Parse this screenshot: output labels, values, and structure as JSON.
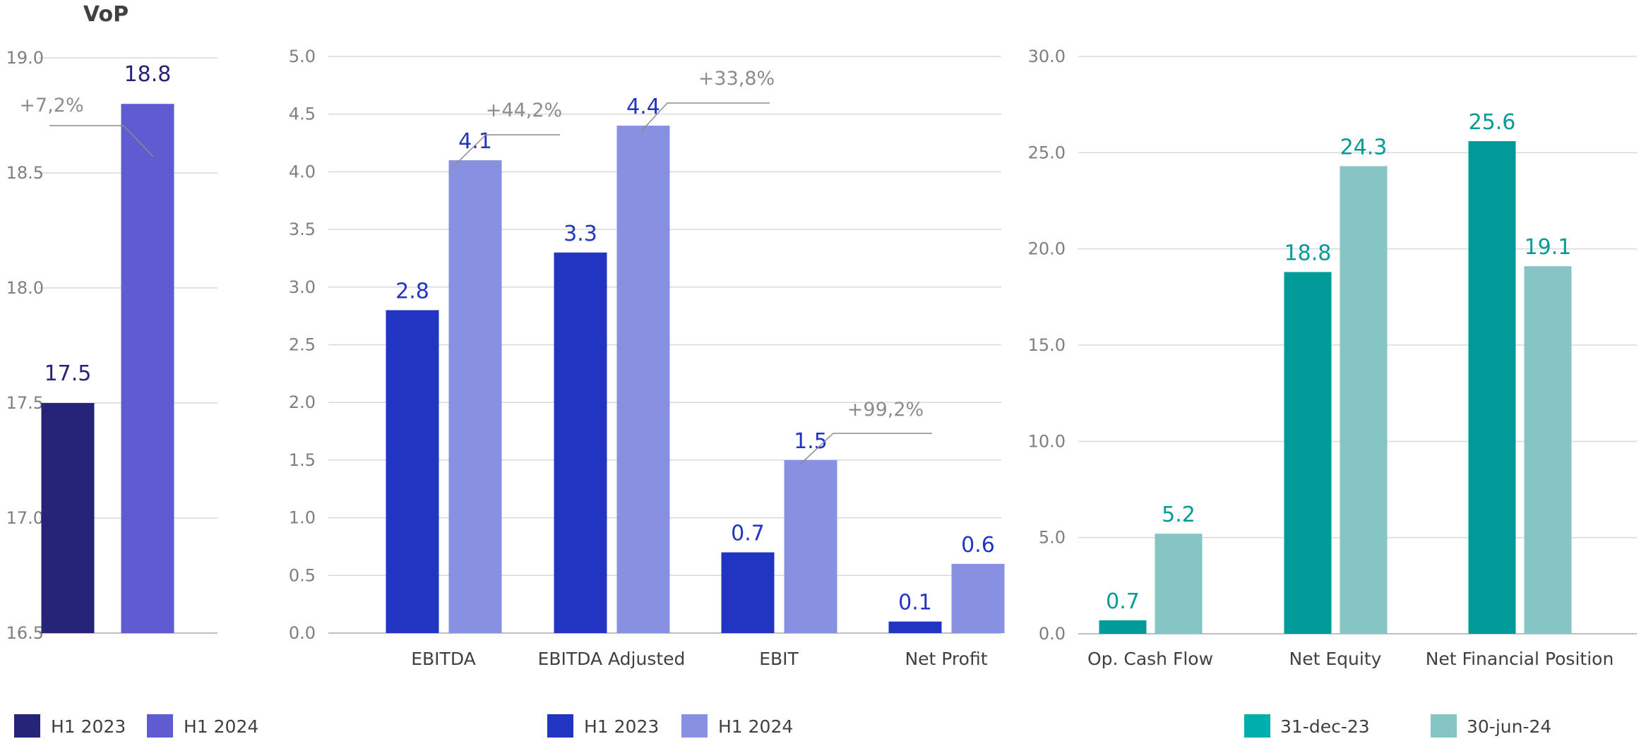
{
  "chart_data": [
    {
      "type": "bar",
      "title": "VoP",
      "categories": [
        ""
      ],
      "series": [
        {
          "name": "H1 2023",
          "values": [
            17.5
          ]
        },
        {
          "name": "H1 2024",
          "values": [
            18.8
          ]
        }
      ],
      "ylim": [
        16.5,
        19.0
      ],
      "yticks": [
        "16.5",
        "17.0",
        "17.5",
        "18.0",
        "18.5",
        "19.0"
      ],
      "grid": true,
      "legend_position": "bottom",
      "colors": [
        "#262478",
        "#5f5cd1"
      ],
      "label_color": "#262478",
      "annotations": [
        {
          "text": "+7,2%",
          "category_index": 0
        }
      ]
    },
    {
      "type": "bar",
      "title": "",
      "categories": [
        "EBITDA",
        "EBITDA Adjusted",
        "EBIT",
        "Net Profit"
      ],
      "series": [
        {
          "name": "H1 2023",
          "values": [
            2.8,
            3.3,
            0.7,
            0.1
          ]
        },
        {
          "name": "H1 2024",
          "values": [
            4.1,
            4.4,
            1.5,
            0.6
          ]
        }
      ],
      "ylim": [
        0.0,
        5.0
      ],
      "yticks": [
        "0.0",
        "0.5",
        "1.0",
        "1.5",
        "2.0",
        "2.5",
        "3.0",
        "3.5",
        "4.0",
        "4.5",
        "5.0"
      ],
      "grid": true,
      "legend_position": "bottom",
      "colors": [
        "#2234c2",
        "#8890e1"
      ],
      "label_color": "#2234c2",
      "annotations": [
        {
          "text": "+44,2%",
          "category_index": 0
        },
        {
          "text": "+33,8%",
          "category_index": 1
        },
        {
          "text": "+99,2%",
          "category_index": 2
        }
      ]
    },
    {
      "type": "bar",
      "title": "",
      "categories": [
        "Op. Cash Flow",
        "Net Equity",
        "Net Financial Position"
      ],
      "series": [
        {
          "name": "31-dec-23",
          "values": [
            0.7,
            18.8,
            25.6
          ]
        },
        {
          "name": "30-jun-24",
          "values": [
            5.2,
            24.3,
            19.1
          ]
        }
      ],
      "ylim": [
        0.0,
        30.0
      ],
      "yticks": [
        "0.0",
        "5.0",
        "10.0",
        "15.0",
        "20.0",
        "25.0",
        "30.0"
      ],
      "grid": true,
      "legend_position": "bottom",
      "colors": [
        "#009b98",
        "#85c6c5"
      ],
      "legend_colors": [
        "#00aeab",
        "#85c6c5"
      ],
      "label_color": "#009b98",
      "annotations": []
    }
  ]
}
